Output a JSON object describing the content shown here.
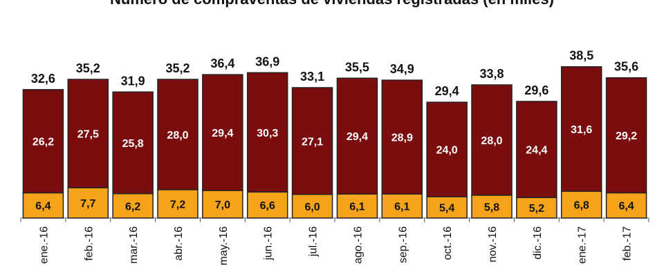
{
  "chart_data": {
    "type": "bar",
    "stacked": true,
    "title": "Número de compraventas de viviendas registradas (en miles)",
    "categories": [
      "ene.-16",
      "feb.-16",
      "mar.-16",
      "abr.-16",
      "may.-16",
      "jun.-16",
      "jul.-16",
      "ago.-16",
      "sep.-16",
      "oct.-16",
      "nov.-16",
      "dic.-16",
      "ene.-17",
      "feb.-17"
    ],
    "series": [
      {
        "values": [
          6.4,
          7.7,
          6.2,
          7.2,
          7.0,
          6.6,
          6.0,
          6.1,
          6.1,
          5.4,
          5.8,
          5.2,
          6.8,
          6.4
        ],
        "labels": [
          "6,4",
          "7,7",
          "6,2",
          "7,2",
          "7,0",
          "6,6",
          "6,0",
          "6,1",
          "6,1",
          "5,4",
          "5,8",
          "5,2",
          "6,8",
          "6,4"
        ],
        "color": "#f5a31a"
      },
      {
        "values": [
          26.2,
          27.5,
          25.8,
          28.0,
          29.4,
          30.3,
          27.1,
          29.4,
          28.9,
          24.0,
          28.0,
          24.4,
          31.6,
          29.2
        ],
        "labels": [
          "26,2",
          "27,5",
          "25,8",
          "28,0",
          "29,4",
          "30,3",
          "27,1",
          "29,4",
          "28,9",
          "24,0",
          "28,0",
          "24,4",
          "31,6",
          "29,2"
        ],
        "color": "#7a0d0d"
      }
    ],
    "totals": [
      32.6,
      35.2,
      31.9,
      35.2,
      36.4,
      36.9,
      33.1,
      35.5,
      34.9,
      29.4,
      33.8,
      29.6,
      38.5,
      35.6
    ],
    "total_labels": [
      "32,6",
      "35,2",
      "31,9",
      "35,2",
      "36,4",
      "36,9",
      "33,1",
      "35,5",
      "34,9",
      "29,4",
      "33,8",
      "29,6",
      "38,5",
      "35,6"
    ],
    "ylim": [
      0,
      40
    ],
    "grid": false,
    "legend": "none",
    "xlabel": "",
    "ylabel": ""
  }
}
